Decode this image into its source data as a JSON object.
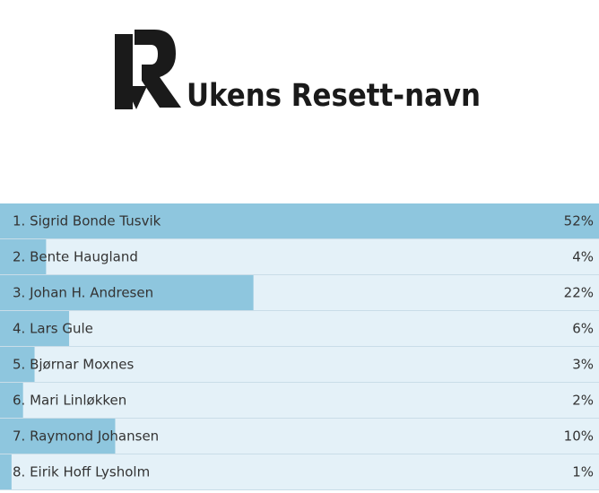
{
  "chart_data": {
    "type": "bar",
    "orientation": "horizontal",
    "title": "Ukens Resett-navn",
    "categories": [
      "1. Sigrid Bonde Tusvik",
      "2. Bente Haugland",
      "3. Johan H. Andresen",
      "4. Lars Gule",
      "5. Bjørnar Moxnes",
      "6. Mari Linløkken",
      "7. Raymond Johansen",
      "8. Eirik Hoff Lysholm"
    ],
    "values": [
      52,
      4,
      22,
      6,
      3,
      2,
      10,
      1
    ],
    "value_labels": [
      "52%",
      "4%",
      "22%",
      "6%",
      "3%",
      "2%",
      "10%",
      "1%"
    ],
    "color": "#8ec6de",
    "track_color": "#e4f1f8"
  }
}
